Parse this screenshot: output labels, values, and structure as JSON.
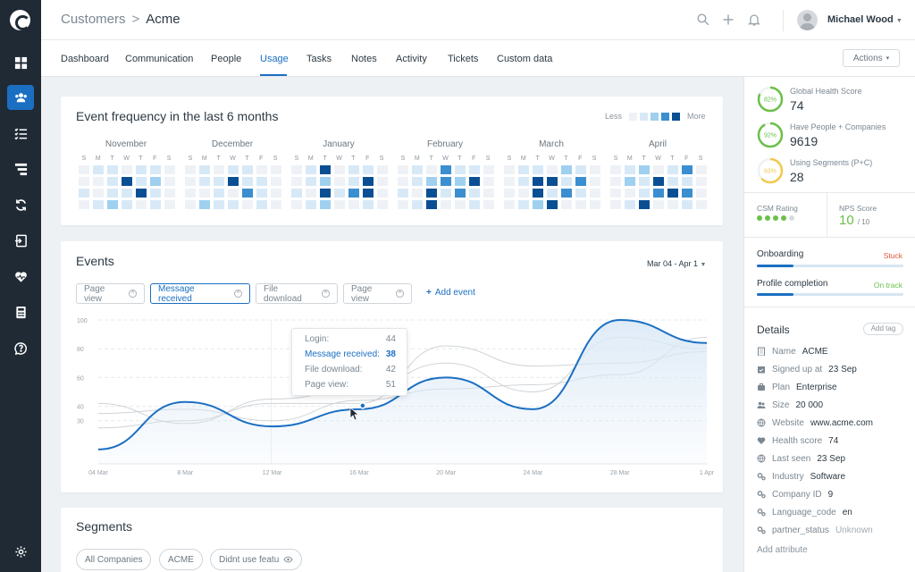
{
  "topbar": {
    "breadcrumb_root": "Customers",
    "breadcrumb_sep": ">",
    "breadcrumb_current": "Acme",
    "user_name": "Michael Wood"
  },
  "tabs": [
    "Dashboard",
    "Communication",
    "People",
    "Usage",
    "Tasks",
    "Notes",
    "Activity",
    "Tickets",
    "Custom data"
  ],
  "active_tab": "Usage",
  "actions_label": "Actions",
  "event_frequency": {
    "title": "Event frequency in the last 6 months",
    "legend_less": "Less",
    "legend_more": "More",
    "legend_colors": [
      "#eef2f6",
      "#d7e9f7",
      "#9fd0ef",
      "#3b8fd0",
      "#0a4f93"
    ],
    "day_letters": [
      "S",
      "M",
      "T",
      "W",
      "T",
      "F",
      "S"
    ],
    "months": [
      {
        "name": "November",
        "levels": [
          [
            0,
            1,
            1,
            0,
            1,
            1,
            0
          ],
          [
            0,
            0,
            1,
            4,
            1,
            2,
            0
          ],
          [
            1,
            0,
            1,
            1,
            4,
            1,
            0
          ],
          [
            0,
            1,
            2,
            1,
            0,
            1,
            0
          ]
        ]
      },
      {
        "name": "December",
        "levels": [
          [
            0,
            1,
            0,
            1,
            1,
            0,
            0
          ],
          [
            0,
            1,
            1,
            4,
            1,
            1,
            0
          ],
          [
            0,
            0,
            1,
            0,
            3,
            1,
            0
          ],
          [
            0,
            2,
            1,
            1,
            0,
            1,
            0
          ]
        ]
      },
      {
        "name": "January",
        "levels": [
          [
            0,
            1,
            4,
            0,
            1,
            1,
            0
          ],
          [
            0,
            1,
            2,
            0,
            1,
            4,
            0
          ],
          [
            1,
            0,
            4,
            1,
            3,
            4,
            0
          ],
          [
            0,
            1,
            2,
            0,
            0,
            1,
            0
          ]
        ]
      },
      {
        "name": "February",
        "levels": [
          [
            0,
            1,
            0,
            3,
            1,
            1,
            0
          ],
          [
            0,
            1,
            2,
            3,
            2,
            4,
            0
          ],
          [
            1,
            0,
            4,
            1,
            3,
            1,
            0
          ],
          [
            0,
            1,
            4,
            0,
            0,
            1,
            0
          ]
        ]
      },
      {
        "name": "March",
        "levels": [
          [
            0,
            1,
            1,
            0,
            2,
            1,
            0
          ],
          [
            0,
            1,
            4,
            4,
            1,
            3,
            0
          ],
          [
            0,
            0,
            4,
            1,
            3,
            1,
            0
          ],
          [
            0,
            1,
            2,
            4,
            0,
            0,
            0
          ]
        ]
      },
      {
        "name": "April",
        "levels": [
          [
            0,
            1,
            2,
            0,
            1,
            3,
            0
          ],
          [
            0,
            2,
            1,
            4,
            1,
            1,
            0
          ],
          [
            0,
            0,
            1,
            3,
            4,
            3,
            0
          ],
          [
            0,
            1,
            4,
            0,
            0,
            1,
            0
          ]
        ]
      }
    ]
  },
  "events": {
    "title": "Events",
    "date_range": "Mar 04 - Apr 1",
    "filters": [
      {
        "label": "Page view",
        "selected": false
      },
      {
        "label": "Message received",
        "selected": true
      },
      {
        "label": "File download",
        "selected": false
      },
      {
        "label": "Page view",
        "selected": false
      }
    ],
    "add_event_label": "Add event",
    "tooltip": [
      {
        "label": "Login:",
        "value": "44",
        "highlight": false
      },
      {
        "label": "Message received:",
        "value": "38",
        "highlight": true
      },
      {
        "label": "File download:",
        "value": "42",
        "highlight": false
      },
      {
        "label": "Page view:",
        "value": "51",
        "highlight": false
      }
    ]
  },
  "chart_data": {
    "type": "line",
    "x": [
      "04 Mar",
      "8 Mar",
      "12 Mar",
      "16 Mar",
      "20 Mar",
      "24 Mar",
      "28 Mar",
      "1 Apr"
    ],
    "y_ticks": [
      100,
      80,
      60,
      40,
      30
    ],
    "ylim": [
      0,
      100
    ],
    "highlight_series": "Message received",
    "series": [
      {
        "name": "Message received",
        "values": [
          10,
          43,
          26,
          38,
          60,
          38,
          100,
          84
        ]
      },
      {
        "name": "Login",
        "values": [
          35,
          38,
          30,
          44,
          52,
          55,
          62,
          88
        ]
      },
      {
        "name": "File download",
        "values": [
          25,
          30,
          42,
          42,
          82,
          68,
          70,
          78
        ]
      },
      {
        "name": "Page view",
        "values": [
          42,
          28,
          45,
          51,
          70,
          50,
          88,
          80
        ]
      }
    ],
    "colors": {
      "highlight": "#1b6fc2",
      "muted": "#cfd3d7",
      "area": "#dbe9f6"
    },
    "grid": true
  },
  "segments": {
    "title": "Segments",
    "chips": [
      "All Companies",
      "ACME",
      "Didnt use featu"
    ]
  },
  "scores": [
    {
      "label": "Global Health Score",
      "value": "74",
      "pct": 82,
      "pct_label": "82%",
      "color": "#6cc04a"
    },
    {
      "label": "Have People + Companies",
      "value": "9619",
      "pct": 92,
      "pct_label": "92%",
      "color": "#6cc04a"
    },
    {
      "label": "Using Segments (P+C)",
      "value": "28",
      "pct": 63,
      "pct_label": "63%",
      "color": "#f2c94c"
    }
  ],
  "csm": {
    "label": "CSM Rating",
    "rating": 4,
    "max": 5
  },
  "nps": {
    "label": "NPS Score",
    "value": "10",
    "of": "/ 10"
  },
  "progress": [
    {
      "label": "Onboarding",
      "status": "Stuck",
      "status_color": "#e0563b",
      "fraction": 0.25
    },
    {
      "label": "Profile completion",
      "status": "On track",
      "status_color": "#6cc04a",
      "fraction": 0.25
    }
  ],
  "details": {
    "title": "Details",
    "add_tag": "Add tag",
    "rows": [
      {
        "key": "Name",
        "value": "ACME",
        "icon": "building-icon"
      },
      {
        "key": "Signed up at",
        "value": "23 Sep",
        "icon": "calendar-check-icon"
      },
      {
        "key": "Plan",
        "value": "Enterprise",
        "icon": "briefcase-icon"
      },
      {
        "key": "Size",
        "value": "20 000",
        "icon": "people-icon"
      },
      {
        "key": "Website",
        "value": "www.acme.com",
        "icon": "globe-icon"
      },
      {
        "key": "Health score",
        "value": "74",
        "icon": "heart-icon"
      },
      {
        "key": "Last seen",
        "value": "23 Sep",
        "icon": "globe-icon"
      },
      {
        "key": "Industry",
        "value": "Software",
        "icon": "gears-icon"
      },
      {
        "key": "Company ID",
        "value": "9",
        "icon": "gears-icon"
      },
      {
        "key": "Language_code",
        "value": "en",
        "icon": "gears-icon"
      },
      {
        "key": "partner_status",
        "value": "Unknown",
        "icon": "gears-icon",
        "muted": true
      }
    ],
    "add_attribute": "Add attribute"
  }
}
